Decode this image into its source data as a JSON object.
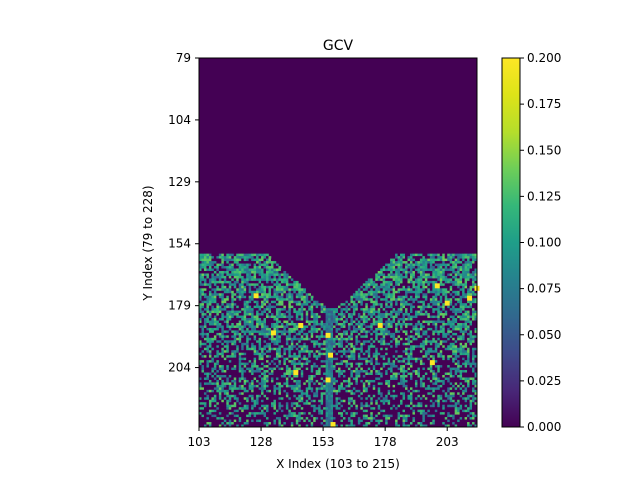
{
  "chart_data": {
    "type": "heatmap",
    "title": "GCV",
    "xlabel": "X Index (103 to 215)",
    "ylabel": "Y Index (79 to 228)",
    "xlim": [
      103,
      215
    ],
    "ylim": [
      79,
      228
    ],
    "x_ticks": [
      103,
      128,
      153,
      178,
      203
    ],
    "y_ticks": [
      79,
      104,
      129,
      154,
      179,
      204
    ],
    "colormap": "viridis",
    "colorbar": {
      "vmin": 0.0,
      "vmax": 0.2,
      "ticks": [
        "0.000",
        "0.025",
        "0.050",
        "0.075",
        "0.100",
        "0.125",
        "0.150",
        "0.175",
        "0.200"
      ]
    },
    "summary": {
      "empty_region_rows": [
        79,
        158
      ],
      "empty_region_value": 0.0,
      "tissue_rows": [
        158,
        228
      ],
      "typical_tissue_value": 0.1,
      "hotspot_value": 0.2,
      "hotspots": [
        {
          "x": 125,
          "y": 174
        },
        {
          "x": 132,
          "y": 189
        },
        {
          "x": 154,
          "y": 190
        },
        {
          "x": 155,
          "y": 198
        },
        {
          "x": 154,
          "y": 208
        },
        {
          "x": 156,
          "y": 226
        },
        {
          "x": 175,
          "y": 186
        },
        {
          "x": 198,
          "y": 170
        },
        {
          "x": 202,
          "y": 177
        },
        {
          "x": 211,
          "y": 175
        },
        {
          "x": 214,
          "y": 171
        },
        {
          "x": 196,
          "y": 201
        },
        {
          "x": 141,
          "y": 205
        },
        {
          "x": 143,
          "y": 186
        }
      ]
    },
    "grid": false,
    "legend": "colorbar-right"
  }
}
